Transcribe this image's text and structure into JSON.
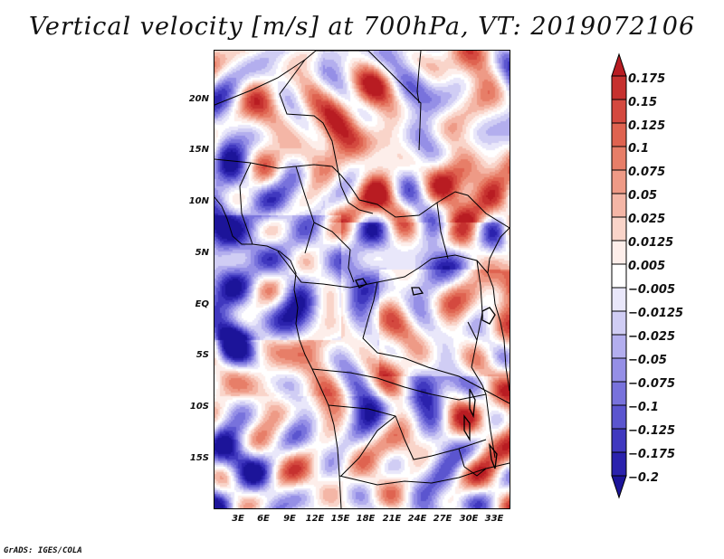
{
  "title": "Vertical velocity [m/s] at 700hPa, VT: 2019072106",
  "credit": "GrADS: IGES/COLA",
  "map": {
    "lat_labels": [
      "20N",
      "15N",
      "10N",
      "5N",
      "EQ",
      "5S",
      "10S",
      "15S"
    ],
    "lon_labels": [
      "3E",
      "6E",
      "9E",
      "12E",
      "15E",
      "18E",
      "21E",
      "24E",
      "27E",
      "30E",
      "33E"
    ]
  },
  "colorbar": {
    "labels": [
      "0.175",
      "0.15",
      "0.125",
      "0.1",
      "0.075",
      "0.05",
      "0.025",
      "0.0125",
      "0.005",
      "−0.005",
      "−0.0125",
      "−0.025",
      "−0.05",
      "−0.075",
      "−0.1",
      "−0.125",
      "−0.175",
      "−0.2"
    ],
    "colors": [
      "#b81c22",
      "#c6312f",
      "#d4493f",
      "#df6350",
      "#e77e68",
      "#ee9a86",
      "#f4b6a6",
      "#f9d4c9",
      "#fdeeea",
      "#ffffff",
      "#e9e7fa",
      "#d0cdf4",
      "#b3aeee",
      "#958fe6",
      "#7872dc",
      "#5b55cf",
      "#4038bf",
      "#2b22ad",
      "#1c1499"
    ]
  }
}
